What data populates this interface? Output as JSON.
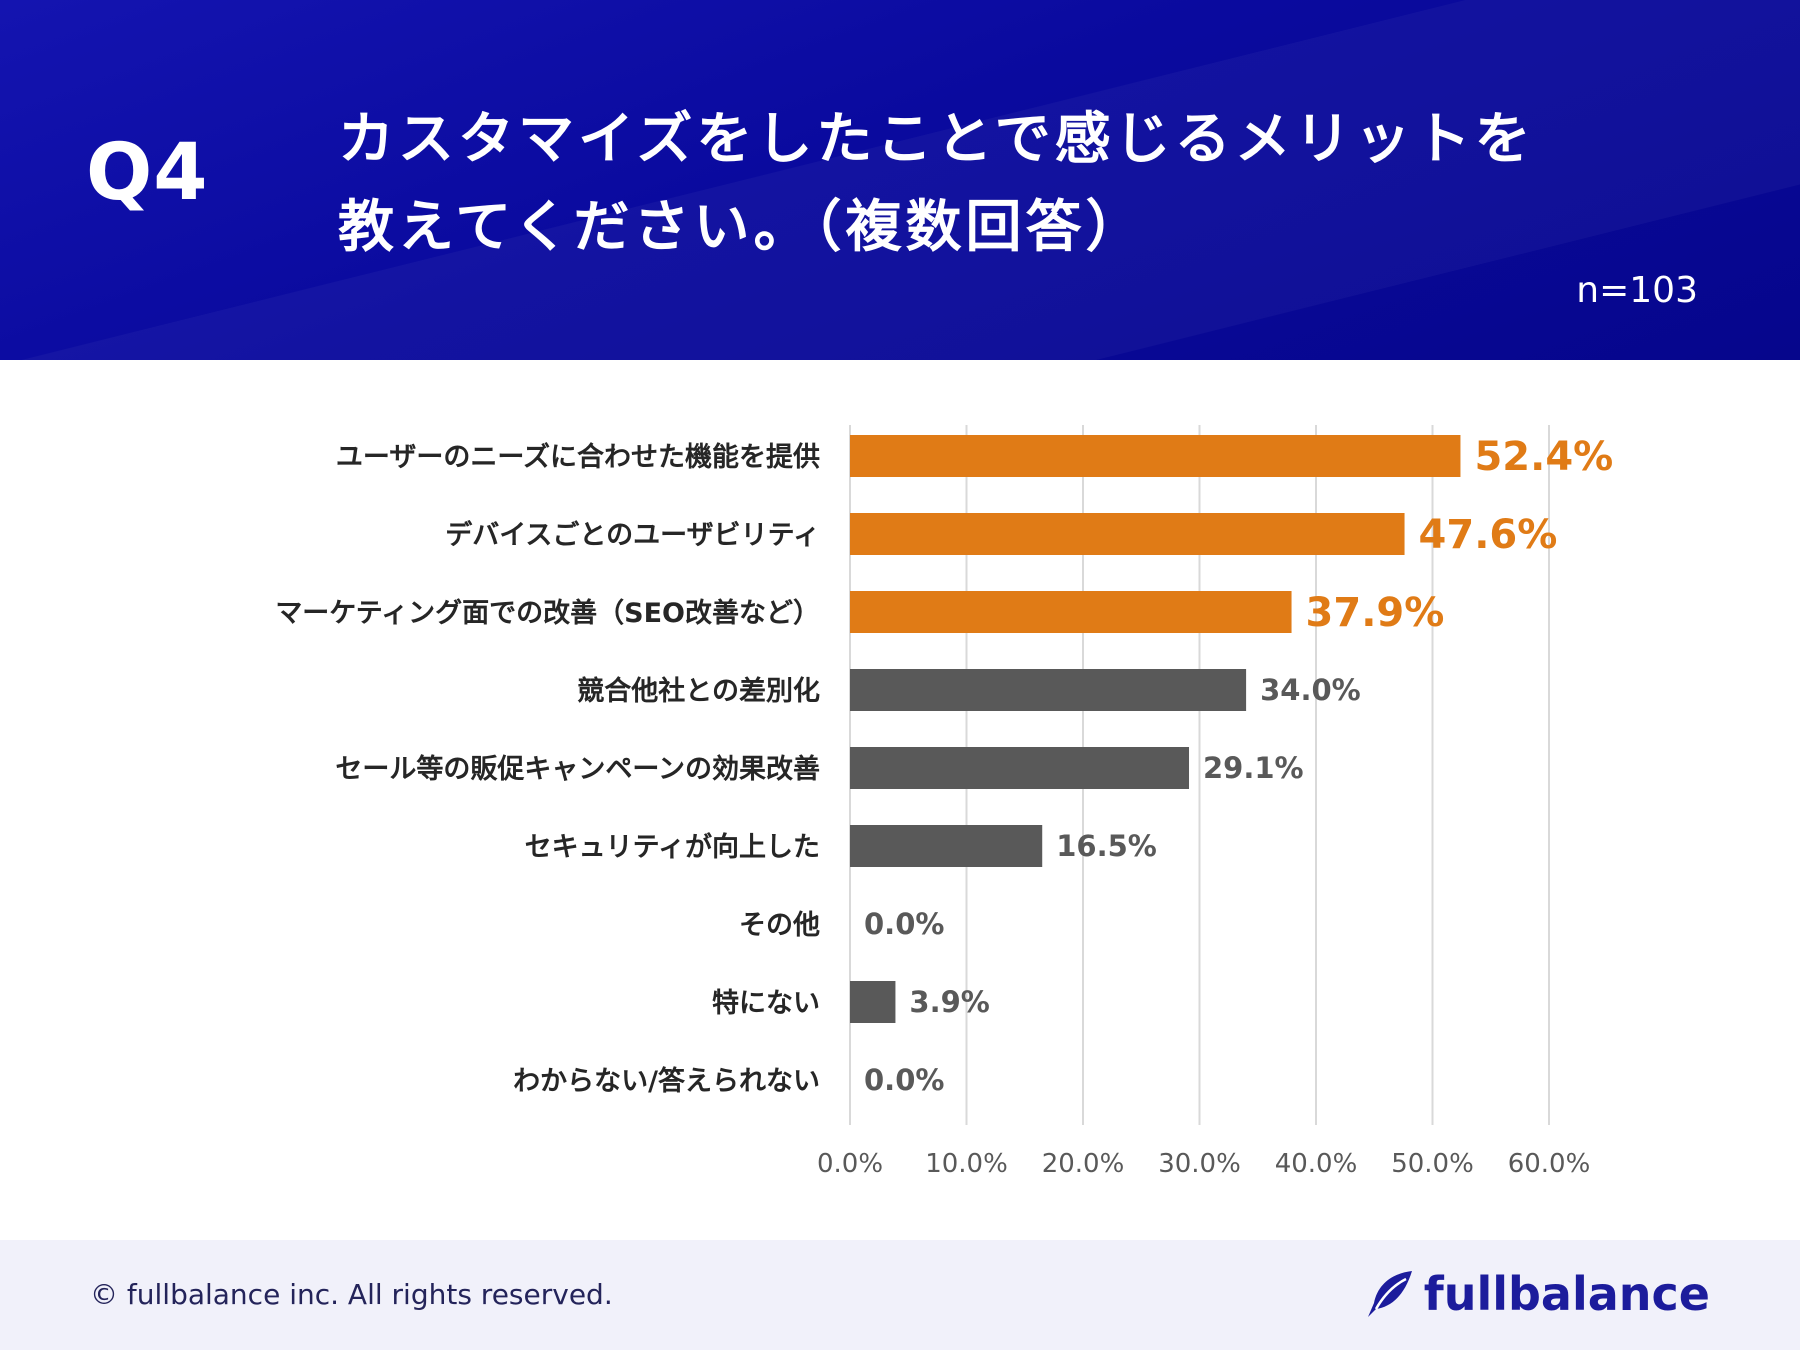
{
  "header": {
    "question": "Q4",
    "title_line1": "カスタマイズをしたことで感じるメリットを",
    "title_line2": "教えてください。（複数回答）",
    "sample_size": "n=103"
  },
  "colors": {
    "header_bg": "#0a0aa0",
    "highlight_bar": "#e07b16",
    "normal_bar": "#595959",
    "grid": "#d9d9d9",
    "brand": "#1c1c9c"
  },
  "chart_data": {
    "type": "bar",
    "orientation": "horizontal",
    "categories": [
      "ユーザーのニーズに合わせた機能を提供",
      "デバイスごとのユーザビリティ",
      "マーケティング面での改善（SEO改善など）",
      "競合他社との差別化",
      "セール等の販促キャンペーンの効果改善",
      "セキュリティが向上した",
      "その他",
      "特にない",
      "わからない/答えられない"
    ],
    "values": [
      52.4,
      47.6,
      37.9,
      34.0,
      29.1,
      16.5,
      0.0,
      3.9,
      0.0
    ],
    "value_labels": [
      "52.4%",
      "47.6%",
      "37.9%",
      "34.0%",
      "29.1%",
      "16.5%",
      "0.0%",
      "3.9%",
      "0.0%"
    ],
    "highlighted": [
      true,
      true,
      true,
      false,
      false,
      false,
      false,
      false,
      false
    ],
    "xlim": [
      0,
      60
    ],
    "xticks": [
      "0.0%",
      "10.0%",
      "20.0%",
      "30.0%",
      "40.0%",
      "50.0%",
      "60.0%"
    ],
    "grid": true,
    "title": "",
    "xlabel": "",
    "ylabel": ""
  },
  "footer": {
    "copyright": "© fullbalance inc. All rights reserved.",
    "brand": "fullbalance"
  }
}
